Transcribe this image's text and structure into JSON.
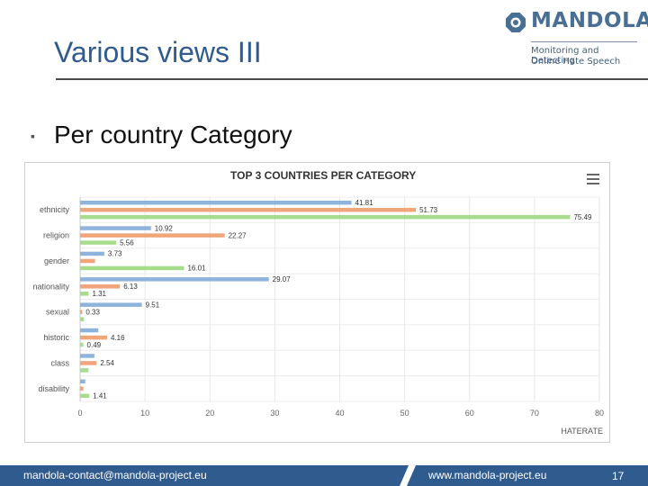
{
  "slide": {
    "title": "Various views III",
    "bullet": "Per country Category",
    "footer_contact": "mandola-contact@mandola-project.eu",
    "footer_web": "www.mandola-project.eu",
    "page_number": "17"
  },
  "logo": {
    "name": "MANDOLA",
    "tagline_line1": "Monitoring and Detecting",
    "tagline_line2": "Online Hate Speech",
    "icon": "octagon-icon"
  },
  "colors": {
    "title": "#2f5b8f",
    "footer": "#2f5b8f",
    "series_blue": "#8eb4de",
    "series_orange": "#f0a57a",
    "series_green": "#a6dc8c"
  },
  "chart_data": {
    "type": "bar",
    "orientation": "horizontal",
    "title": "TOP 3 COUNTRIES PER CATEGORY",
    "xlabel": "HATERATE",
    "xlim": [
      0,
      80
    ],
    "xticks": [
      0,
      10,
      20,
      30,
      40,
      50,
      60,
      70,
      80
    ],
    "grid": true,
    "legend": "none",
    "categories": [
      "ethnicity",
      "religion",
      "gender",
      "nationality",
      "sexual",
      "historic",
      "class",
      "disability"
    ],
    "series": [
      {
        "color": "#8eb4de",
        "values": [
          41.81,
          10.92,
          3.73,
          29.07,
          9.51,
          2.8,
          2.2,
          0.8
        ]
      },
      {
        "color": "#f0a57a",
        "values": [
          51.73,
          22.27,
          2.3,
          6.13,
          0.33,
          4.16,
          2.54,
          0.5
        ]
      },
      {
        "color": "#a6dc8c",
        "values": [
          75.49,
          5.56,
          16.01,
          1.31,
          0.6,
          0.49,
          1.3,
          1.41
        ]
      }
    ],
    "data_labels": [
      [
        "41.81",
        "51.73",
        "75.49"
      ],
      [
        "10.92",
        "22.27",
        "5.56"
      ],
      [
        "3.73",
        "",
        "16.01"
      ],
      [
        "29.07",
        "6.13",
        "1.31"
      ],
      [
        "9.51",
        "0.33",
        ""
      ],
      [
        "",
        "4.16",
        "0.49"
      ],
      [
        "",
        "2.54",
        ""
      ],
      [
        "",
        "",
        "1.41"
      ]
    ]
  }
}
